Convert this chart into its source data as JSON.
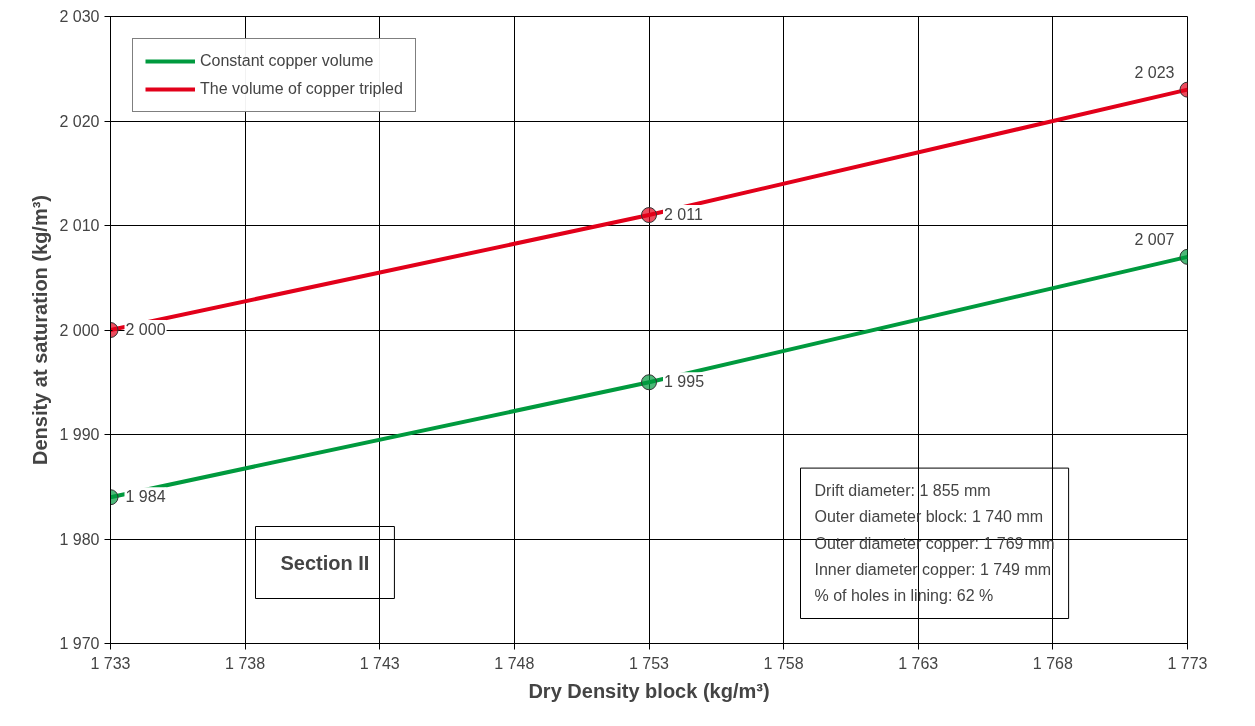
{
  "chart_data": {
    "type": "line",
    "xlabel": "Dry Density block (kg/m³)",
    "ylabel": "Density at saturation (kg/m³)",
    "x": [
      1733,
      1753,
      1773
    ],
    "series": [
      {
        "name": "Constant copper volume",
        "color": "#009a3e",
        "values": [
          1984,
          1995,
          2007
        ],
        "value_labels": [
          "1 984",
          "1 995",
          "2 007"
        ]
      },
      {
        "name": "The volume of copper tripled",
        "color": "#e2001a",
        "values": [
          2000,
          2011,
          2023
        ],
        "value_labels": [
          "2 000",
          "2 011",
          "2 023"
        ]
      }
    ],
    "xlim": [
      1733,
      1773
    ],
    "ylim": [
      1970,
      2030
    ],
    "xticks": [
      {
        "value": 1733,
        "label": "1 733"
      },
      {
        "value": 1738,
        "label": "1 738"
      },
      {
        "value": 1743,
        "label": "1 743"
      },
      {
        "value": 1748,
        "label": "1 748"
      },
      {
        "value": 1753,
        "label": "1 753"
      },
      {
        "value": 1758,
        "label": "1 758"
      },
      {
        "value": 1763,
        "label": "1 763"
      },
      {
        "value": 1768,
        "label": "1 768"
      },
      {
        "value": 1773,
        "label": "1 773"
      }
    ],
    "yticks": [
      {
        "value": 1970,
        "label": "1 970"
      },
      {
        "value": 1980,
        "label": "1 980"
      },
      {
        "value": 1990,
        "label": "1 990"
      },
      {
        "value": 2000,
        "label": "2 000"
      },
      {
        "value": 2010,
        "label": "2 010"
      },
      {
        "value": 2020,
        "label": "2 020"
      },
      {
        "value": 2030,
        "label": "2 030"
      }
    ],
    "grid": true,
    "legend": "top left",
    "marker": "circle",
    "line_style": "solid",
    "annotations": [
      "Section II",
      "Drift diameter: 1 855 mm\nOuter diameter block: 1 740 mm\nOuter diameter copper: 1 769 mm\nInner diameter copper: 1 749 mm\n% of holes in lining: 62 %"
    ]
  }
}
